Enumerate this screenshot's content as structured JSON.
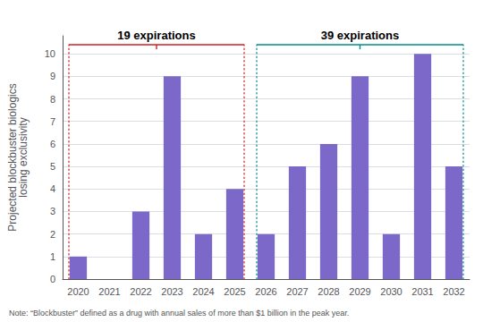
{
  "chart_data": {
    "type": "bar",
    "categories": [
      "2020",
      "2021",
      "2022",
      "2023",
      "2024",
      "2025",
      "2026",
      "2027",
      "2028",
      "2029",
      "2030",
      "2031",
      "2032"
    ],
    "values": [
      1,
      0,
      3,
      9,
      2,
      4,
      2,
      5,
      6,
      9,
      2,
      10,
      5
    ],
    "color": "#7B68C8",
    "ylabel": "Projected blockbuster biologics\nlosing exclusivity",
    "ylim": [
      0,
      10.8
    ],
    "yticks": [
      0,
      1,
      2,
      3,
      4,
      5,
      6,
      7,
      8,
      9,
      10
    ],
    "grid": true,
    "annotations": [
      {
        "text": "19 expirations",
        "color": "#CC2222",
        "start": "2020",
        "end": "2025"
      },
      {
        "text": "39 expirations",
        "color": "#008B8B",
        "start": "2026",
        "end": "2032"
      }
    ],
    "note": "Note: “Blockbuster” defined as a drug with annual sales of more than $1 billion in the peak year."
  }
}
